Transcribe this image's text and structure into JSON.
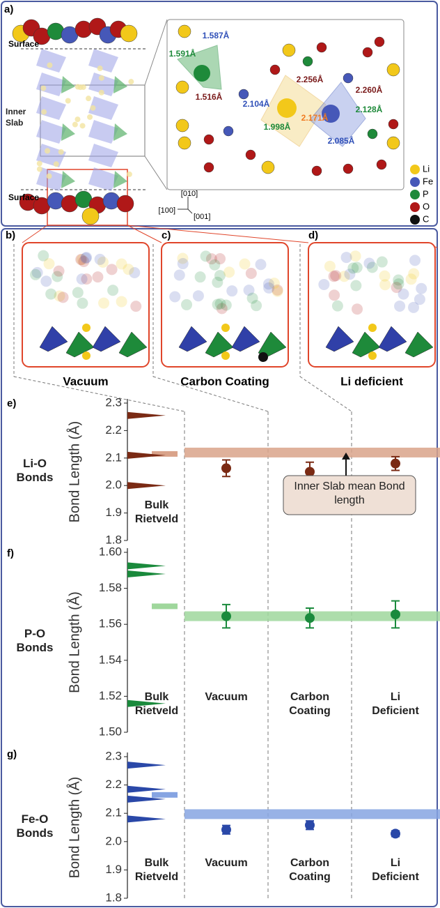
{
  "structure": {
    "panel": "a)",
    "surface_top": "Surface",
    "inner_slab": "Inner Slab",
    "surface_bottom": "Surface",
    "bond_labels": [
      {
        "text": "1.587Å",
        "color": "#3050b8"
      },
      {
        "text": "1.591Å",
        "color": "#1e8a3a"
      },
      {
        "text": "1.516Å",
        "color": "#7a1a1a"
      },
      {
        "text": "2.256Å",
        "color": "#7a1a1a"
      },
      {
        "text": "2.260Å",
        "color": "#7a1a1a"
      },
      {
        "text": "2.104Å",
        "color": "#3050b8"
      },
      {
        "text": "2.128Å",
        "color": "#1e8a3a"
      },
      {
        "text": "2.171Å",
        "color": "#f07a20"
      },
      {
        "text": "1.998Å",
        "color": "#1e8a3a"
      },
      {
        "text": "2.085Å",
        "color": "#3050b8"
      }
    ],
    "legend": [
      {
        "name": "Li",
        "color": "#f2c81a"
      },
      {
        "name": "Fe",
        "color": "#4658b8"
      },
      {
        "name": "P",
        "color": "#1e8a3a"
      },
      {
        "name": "O",
        "color": "#b01818"
      },
      {
        "name": "C",
        "color": "#111111"
      }
    ],
    "axes": [
      "[010]",
      "[100]",
      "[001]"
    ]
  },
  "panels": [
    {
      "panel": "b)",
      "name": "Vacuum"
    },
    {
      "panel": "c)",
      "name": "Carbon Coating"
    },
    {
      "panel": "d)",
      "name": "Li deficient"
    }
  ],
  "chart_data": [
    {
      "type": "errorbar",
      "panel": "e)",
      "label": "Li-O Bonds",
      "ylabel": "Bond Length (Å)",
      "categories": [
        "Bulk Rietveld",
        null,
        null,
        null
      ],
      "series": [
        {
          "color": "#7a2a14",
          "values": [
            null,
            2.063,
            2.05,
            2.08
          ],
          "errors": [
            null,
            0.03,
            0.035,
            0.025
          ]
        }
      ],
      "bulk_bond_lengths": [
        2.255,
        2.11,
        2.0
      ],
      "bulk_mean": 2.115,
      "bulk_color": "#d9a38a",
      "inner_slab_mean": 2.12,
      "band_color": "#d9a38a",
      "annotation": "Inner Slab mean Bond length",
      "ylim": [
        1.8,
        2.3
      ],
      "yticks": [
        1.8,
        1.9,
        {
          "value": 2,
          "label": "2.0"
        },
        2.1,
        2.2,
        2.3
      ]
    },
    {
      "type": "errorbar",
      "panel": "f)",
      "label": "P-O Bonds",
      "ylabel": "Bond Length (Å)",
      "categories": [
        "Bulk Rietveld",
        "Vacuum",
        "Carbon Coating",
        "Li Deficient"
      ],
      "series": [
        {
          "color": "#1a8a3c",
          "values": [
            null,
            1.5645,
            1.5635,
            1.5655
          ],
          "errors": [
            null,
            0.0065,
            0.0055,
            0.0075
          ]
        }
      ],
      "bulk_bond_lengths": [
        1.5925,
        1.588,
        1.516
      ],
      "bulk_mean": 1.57,
      "bulk_color": "#9fd79c",
      "inner_slab_mean": 1.5645,
      "band_color": "#9fd79c",
      "ylim": [
        1.5,
        1.6
      ],
      "yticks": [
        {
          "value": 1.5,
          "label": "1.50"
        },
        1.52,
        1.54,
        1.56,
        1.58,
        {
          "value": 1.6,
          "label": "1.60"
        }
      ]
    },
    {
      "type": "errorbar",
      "panel": "g)",
      "label": "Fe-O Bonds",
      "ylabel": "Bond Length (Å)",
      "categories": [
        "Bulk Rietveld",
        "Vacuum",
        "Carbon Coating",
        "Li Deficient"
      ],
      "series": [
        {
          "color": "#2a48a8",
          "values": [
            null,
            2.042,
            2.058,
            2.028
          ],
          "errors": [
            null,
            0.015,
            0.015,
            0.01
          ]
        }
      ],
      "bulk_bond_lengths": [
        2.27,
        2.185,
        2.15,
        2.08
      ],
      "bulk_mean": 2.165,
      "bulk_color": "#86a4e2",
      "inner_slab_mean": 2.097,
      "band_color": "#86a4e2",
      "ylim": [
        1.8,
        2.3
      ],
      "yticks": [
        1.8,
        1.9,
        {
          "value": 2,
          "label": "2.0"
        },
        2.1,
        2.2,
        2.3
      ]
    }
  ]
}
